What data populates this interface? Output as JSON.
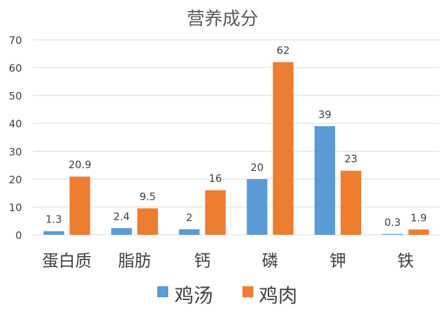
{
  "chart_data": {
    "type": "bar",
    "title": "营养成分",
    "categories": [
      "蛋白质",
      "脂肪",
      "钙",
      "磷",
      "钾",
      "铁"
    ],
    "series": [
      {
        "name": "鸡汤",
        "values": [
          1.3,
          2.4,
          2,
          20,
          39,
          0.3
        ],
        "labels": [
          "1.3",
          "2.4",
          "2",
          "20",
          "39",
          "0.3"
        ],
        "color": "#5B9BD5"
      },
      {
        "name": "鸡肉",
        "values": [
          20.9,
          9.5,
          16,
          62,
          23,
          1.9
        ],
        "labels": [
          "20.9",
          "9.5",
          "16",
          "62",
          "23",
          "1.9"
        ],
        "color": "#ED7D31"
      }
    ],
    "ylim": [
      0,
      70
    ],
    "yticks": [
      "0",
      "10",
      "20",
      "30",
      "40",
      "50",
      "60",
      "70"
    ],
    "xlabel": "",
    "ylabel": "",
    "grid": true,
    "legend": "bottom",
    "colors": {
      "grid": "#D9D9D9",
      "text": "#404040",
      "title": "#595959"
    }
  }
}
